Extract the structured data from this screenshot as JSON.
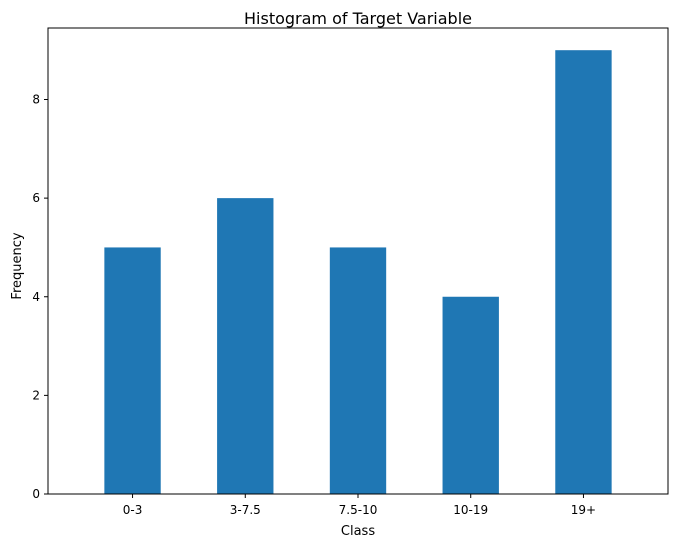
{
  "chart_data": {
    "type": "bar",
    "title": "Histogram of Target Variable",
    "xlabel": "Class",
    "ylabel": "Frequency",
    "categories": [
      "0-3",
      "3-7.5",
      "7.5-10",
      "10-19",
      "19+"
    ],
    "values": [
      5,
      6,
      5,
      4,
      9
    ],
    "ylim": [
      0,
      9.45
    ],
    "yticks": [
      0,
      2,
      4,
      6,
      8
    ],
    "bar_color": "#1f77b4",
    "grid": false,
    "legend": "none"
  }
}
